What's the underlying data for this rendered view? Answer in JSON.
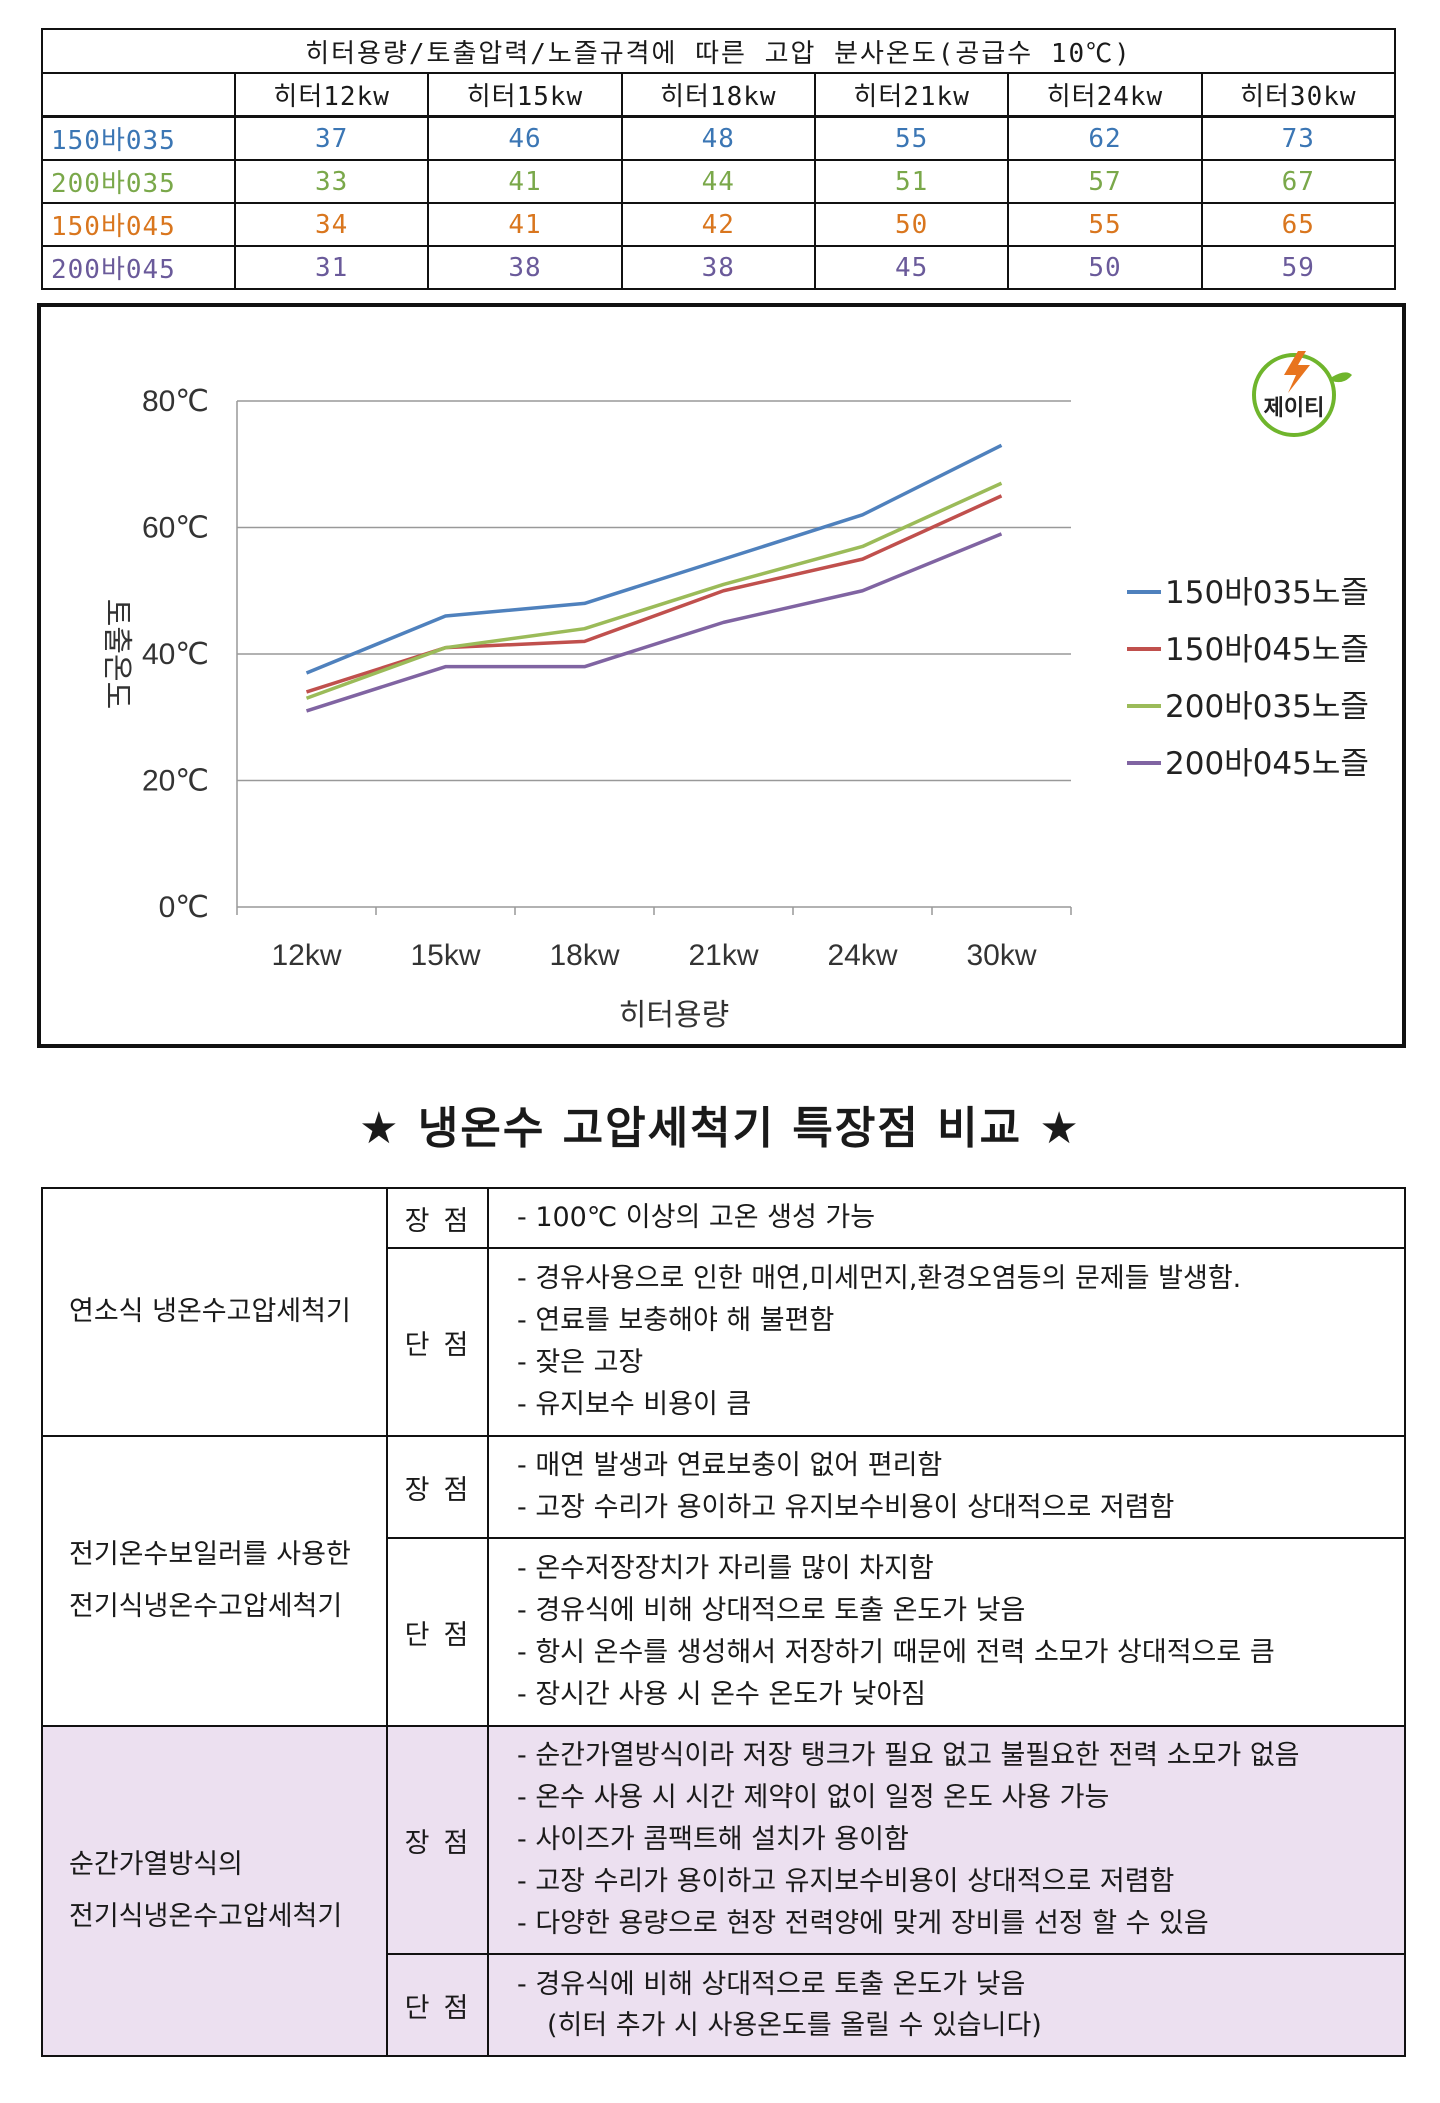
{
  "pressure_table": {
    "title": "히터용량/토출압력/노즐규격에 따른 고압 분사온도(공급수 10℃)",
    "columns": [
      "히터12kw",
      "히터15kw",
      "히터18kw",
      "히터21kw",
      "히터24kw",
      "히터30kw"
    ],
    "rows": [
      {
        "label": "150바035",
        "color": "#3b76b4",
        "values": [
          "37",
          "46",
          "48",
          "55",
          "62",
          "73"
        ]
      },
      {
        "label": "200바035",
        "color": "#7aa84a",
        "values": [
          "33",
          "41",
          "44",
          "51",
          "57",
          "67"
        ]
      },
      {
        "label": "150바045",
        "color": "#d9761e",
        "values": [
          "34",
          "41",
          "42",
          "50",
          "55",
          "65"
        ]
      },
      {
        "label": "200바045",
        "color": "#6a5a9a",
        "values": [
          "31",
          "38",
          "38",
          "45",
          "50",
          "59"
        ]
      }
    ]
  },
  "chart_data": {
    "type": "line",
    "title": "",
    "xlabel": "히터용량",
    "ylabel": "토출온도",
    "categories": [
      "12kw",
      "15kw",
      "18kw",
      "21kw",
      "24kw",
      "30kw"
    ],
    "y_ticks": [
      "0℃",
      "20℃",
      "40℃",
      "60℃",
      "80℃"
    ],
    "y_tick_values": [
      0,
      20,
      40,
      60,
      80
    ],
    "ylim": [
      0,
      80
    ],
    "grid": true,
    "legend_position": "right",
    "series": [
      {
        "name": "150바035노즐",
        "color": "#4f81bd",
        "values": [
          37,
          46,
          48,
          55,
          62,
          73
        ]
      },
      {
        "name": "150바045노즐",
        "color": "#c0504d",
        "values": [
          34,
          41,
          42,
          50,
          55,
          65
        ]
      },
      {
        "name": "200바035노즐",
        "color": "#9bbb59",
        "values": [
          33,
          41,
          44,
          51,
          57,
          67
        ]
      },
      {
        "name": "200바045노즐",
        "color": "#8064a2",
        "values": [
          31,
          38,
          38,
          45,
          50,
          59
        ]
      }
    ]
  },
  "logo": {
    "text": "제이티"
  },
  "section_heading": "★ 냉온수 고압세척기 특장점 비교 ★",
  "comparison": [
    {
      "type_lines": [
        "연소식 냉온수고압세척기"
      ],
      "pros_label": "장점",
      "pros": [
        "- 100℃ 이상의 고온 생성 가능"
      ],
      "cons_label": "단점",
      "cons": [
        "- 경유사용으로 인한 매연,미세먼지,환경오염등의 문제들 발생함.",
        "- 연료를 보충해야 해 불편함",
        "- 잦은 고장",
        "- 유지보수 비용이 큼"
      ],
      "cons_note": ""
    },
    {
      "type_lines": [
        "전기온수보일러를 사용한",
        "전기식냉온수고압세척기"
      ],
      "pros_label": "장점",
      "pros": [
        "- 매연 발생과 연료보충이 없어 편리함",
        "- 고장 수리가 용이하고 유지보수비용이 상대적으로 저렴함"
      ],
      "cons_label": "단점",
      "cons": [
        "- 온수저장장치가 자리를 많이 차지함",
        "- 경유식에 비해 상대적으로 토출 온도가 낮음",
        "- 항시 온수를 생성해서 저장하기 때문에 전력 소모가 상대적으로 큼",
        "- 장시간 사용 시 온수 온도가 낮아짐"
      ],
      "cons_note": ""
    },
    {
      "type_lines": [
        "순간가열방식의",
        "전기식냉온수고압세척기"
      ],
      "pros_label": "장점",
      "pros": [
        "- 순간가열방식이라 저장 탱크가 필요 없고 불필요한 전력 소모가 없음",
        "- 온수 사용 시 시간 제약이 없이 일정 온도 사용 가능",
        "- 사이즈가 콤팩트해 설치가 용이함",
        "- 고장 수리가 용이하고 유지보수비용이 상대적으로 저렴함",
        "- 다양한 용량으로 현장 전력양에 맞게 장비를 선정 할 수 있음"
      ],
      "cons_label": "단점",
      "cons": [
        "- 경유식에 비해 상대적으로 토출 온도가 낮음"
      ],
      "cons_note": "(히터 추가 시 사용온도를 올릴 수 있습니다)"
    }
  ]
}
